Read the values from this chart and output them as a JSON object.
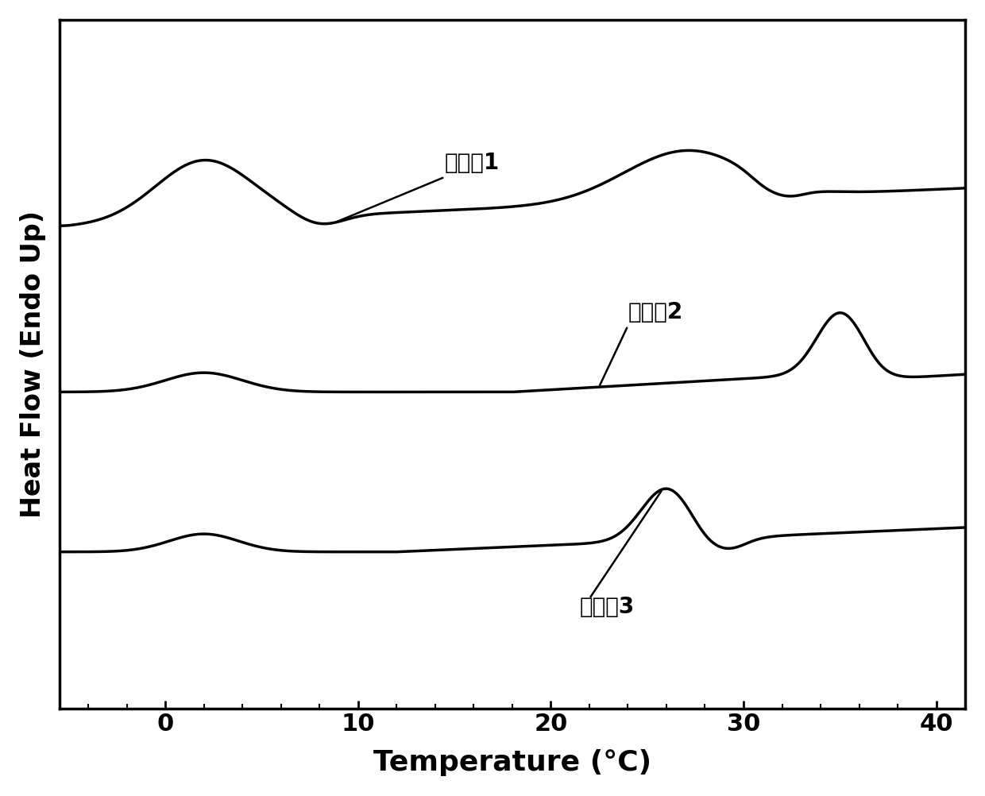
{
  "xlabel": "Temperature (°C)",
  "ylabel": "Heat Flow (Endo Up)",
  "xlim": [
    -5.5,
    41.5
  ],
  "xticks": [
    0,
    10,
    20,
    30,
    40
  ],
  "background_color": "#ffffff",
  "line_color": "#000000",
  "curve1_label": "実施例1",
  "curve2_label": "実施例2",
  "curve3_label": "実施例3",
  "curve1_base": 0.6,
  "curve2_base": 0.0,
  "curve3_base": -0.58,
  "ylim": [
    -1.15,
    1.35
  ]
}
